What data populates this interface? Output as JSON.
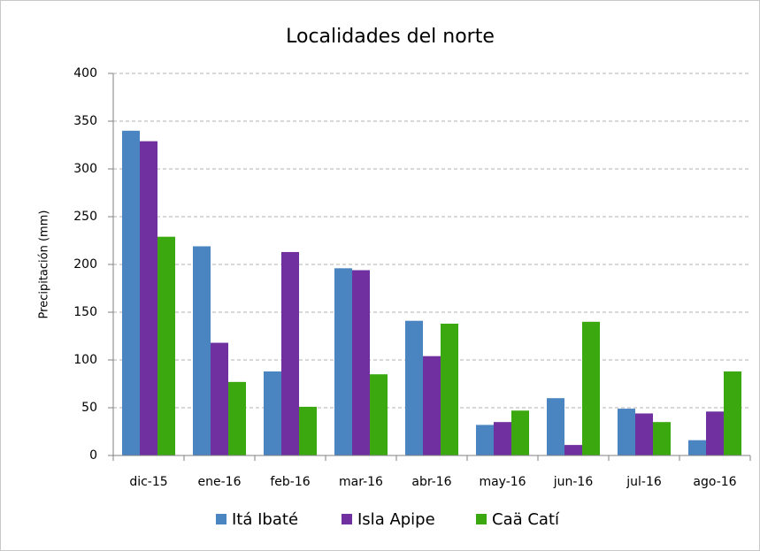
{
  "chart_data": {
    "type": "bar",
    "title": "Localidades del norte",
    "ylabel": "Precipitación (mm)",
    "categories": [
      "dic-15",
      "ene-16",
      "feb-16",
      "mar-16",
      "abr-16",
      "may-16",
      "jun-16",
      "jul-16",
      "ago-16"
    ],
    "series": [
      {
        "name": "Itá Ibaté",
        "color": "#4a85c1",
        "values": [
          340,
          219,
          88,
          196,
          141,
          32,
          60,
          49,
          16
        ]
      },
      {
        "name": "Isla Apipe",
        "color": "#7030a0",
        "values": [
          329,
          118,
          213,
          194,
          104,
          35,
          11,
          44,
          46
        ]
      },
      {
        "name": "Caä Catí",
        "color": "#3aa80e",
        "values": [
          229,
          77,
          51,
          85,
          138,
          47,
          140,
          35,
          88
        ]
      }
    ],
    "ylim": [
      0,
      400
    ],
    "yticks": [
      0,
      50,
      100,
      150,
      200,
      250,
      300,
      350,
      400
    ],
    "grid": true,
    "legend": "bottom"
  }
}
